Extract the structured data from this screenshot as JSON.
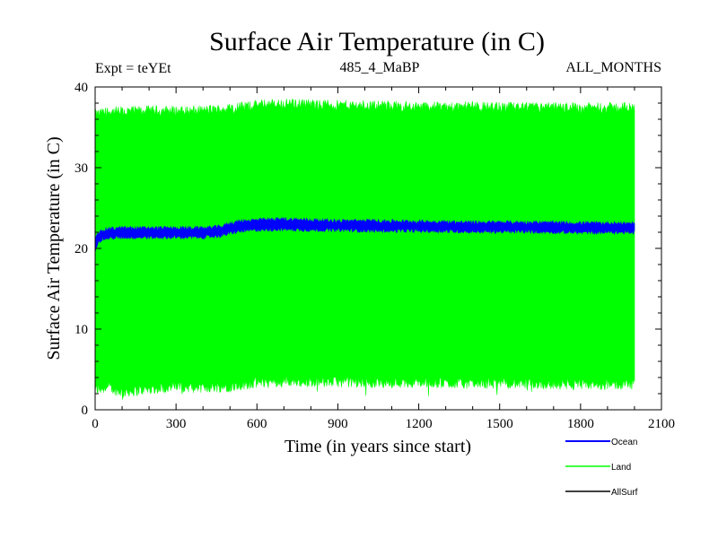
{
  "chart_data": {
    "type": "area",
    "title": "Surface Air Temperature (in C)",
    "expt_label": "Expt = teYEt",
    "subtitle": "485_4_MaBP",
    "months_label": "ALL_MONTHS",
    "xlabel": "Time (in years since start)",
    "ylabel": "Surface Air Temperature (in C)",
    "xlim": [
      0,
      2100
    ],
    "ylim": [
      0,
      40
    ],
    "x_ticks": [
      0,
      300,
      600,
      900,
      1200,
      1500,
      1800,
      2100
    ],
    "x_tick_labels": [
      "0",
      "300",
      "600",
      "900",
      "1200",
      "1500",
      "1800",
      "2100"
    ],
    "y_ticks": [
      0,
      10,
      20,
      30,
      40
    ],
    "y_tick_labels": [
      "0",
      "10",
      "20",
      "30",
      "40"
    ],
    "x_minor_step": 100,
    "y_minor_step": 2,
    "legend_position": "bottom-right",
    "series": [
      {
        "name": "Ocean",
        "color": "#0000ff",
        "x": [
          0,
          10,
          30,
          50,
          100,
          200,
          300,
          400,
          470,
          500,
          550,
          600,
          700,
          800,
          900,
          1000,
          1200,
          1400,
          1600,
          1800,
          2000
        ],
        "lower": [
          19.8,
          20.8,
          21.2,
          21.3,
          21.4,
          21.4,
          21.4,
          21.4,
          21.6,
          21.9,
          22.2,
          22.3,
          22.4,
          22.3,
          22.3,
          22.2,
          22.2,
          22.1,
          22.1,
          22.0,
          22.0
        ],
        "upper": [
          21.0,
          21.8,
          22.3,
          22.4,
          22.5,
          22.5,
          22.5,
          22.5,
          22.7,
          23.1,
          23.4,
          23.5,
          23.6,
          23.5,
          23.4,
          23.4,
          23.3,
          23.2,
          23.2,
          23.1,
          23.1
        ]
      },
      {
        "name": "Land",
        "color": "#00ff00",
        "x": [
          0,
          50,
          100,
          200,
          300,
          400,
          500,
          600,
          700,
          800,
          900,
          1000,
          1200,
          1400,
          1600,
          1800,
          2000
        ],
        "lower": [
          2.5,
          2.8,
          2.2,
          2.6,
          2.9,
          2.8,
          2.9,
          3.4,
          3.6,
          3.5,
          3.5,
          3.4,
          3.4,
          3.3,
          3.3,
          3.1,
          3.2
        ],
        "upper": [
          36.5,
          36.9,
          36.9,
          37.0,
          37.0,
          37.0,
          37.3,
          37.7,
          37.9,
          37.8,
          37.7,
          37.7,
          37.5,
          37.5,
          37.4,
          37.4,
          37.4
        ]
      },
      {
        "name": "AllSurf",
        "color": "#000000",
        "x": [],
        "values": []
      }
    ]
  }
}
